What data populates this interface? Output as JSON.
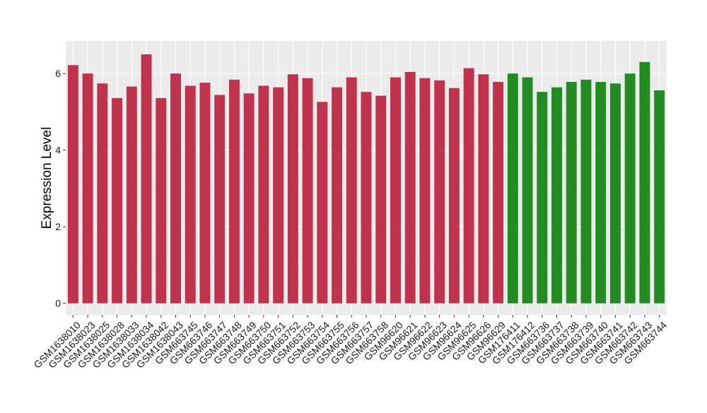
{
  "chart_data": {
    "type": "bar",
    "title": "",
    "xlabel": "",
    "ylabel": "Expression Level",
    "ylim": [
      -0.3,
      6.85
    ],
    "yticks": [
      0,
      2,
      4,
      6
    ],
    "grid": true,
    "legend": "none",
    "panel_color": "#ebebeb",
    "categories": [
      "GSM1638010",
      "GSM1638023",
      "GSM1638025",
      "GSM1638028",
      "GSM1638033",
      "GSM1638034",
      "GSM1638042",
      "GSM1638043",
      "GSM663745",
      "GSM663746",
      "GSM663747",
      "GSM663748",
      "GSM663749",
      "GSM663750",
      "GSM663751",
      "GSM663752",
      "GSM663753",
      "GSM663754",
      "GSM663755",
      "GSM663756",
      "GSM663757",
      "GSM663758",
      "GSM96620",
      "GSM96621",
      "GSM96622",
      "GSM96623",
      "GSM96624",
      "GSM96625",
      "GSM96626",
      "GSM96629",
      "GSM176411",
      "GSM176412",
      "GSM663736",
      "GSM663737",
      "GSM663738",
      "GSM663739",
      "GSM663740",
      "GSM663741",
      "GSM663742",
      "GSM663743",
      "GSM663744"
    ],
    "values": [
      6.22,
      6.0,
      5.74,
      5.36,
      5.66,
      6.5,
      5.36,
      6.0,
      5.68,
      5.76,
      5.44,
      5.84,
      5.48,
      5.68,
      5.64,
      5.98,
      5.88,
      5.26,
      5.64,
      5.9,
      5.52,
      5.42,
      5.9,
      6.04,
      5.88,
      5.82,
      5.62,
      6.14,
      5.98,
      5.78,
      6.0,
      5.9,
      5.52,
      5.64,
      5.78,
      5.84,
      5.78,
      5.74,
      6.0,
      6.3,
      5.56
    ],
    "colors": [
      "#c0334d",
      "#c0334d",
      "#c0334d",
      "#c0334d",
      "#c0334d",
      "#c0334d",
      "#c0334d",
      "#c0334d",
      "#c0334d",
      "#c0334d",
      "#c0334d",
      "#c0334d",
      "#c0334d",
      "#c0334d",
      "#c0334d",
      "#c0334d",
      "#c0334d",
      "#c0334d",
      "#c0334d",
      "#c0334d",
      "#c0334d",
      "#c0334d",
      "#c0334d",
      "#c0334d",
      "#c0334d",
      "#c0334d",
      "#c0334d",
      "#c0334d",
      "#c0334d",
      "#c0334d",
      "#228b22",
      "#228b22",
      "#228b22",
      "#228b22",
      "#228b22",
      "#228b22",
      "#228b22",
      "#228b22",
      "#228b22",
      "#228b22",
      "#228b22"
    ]
  }
}
